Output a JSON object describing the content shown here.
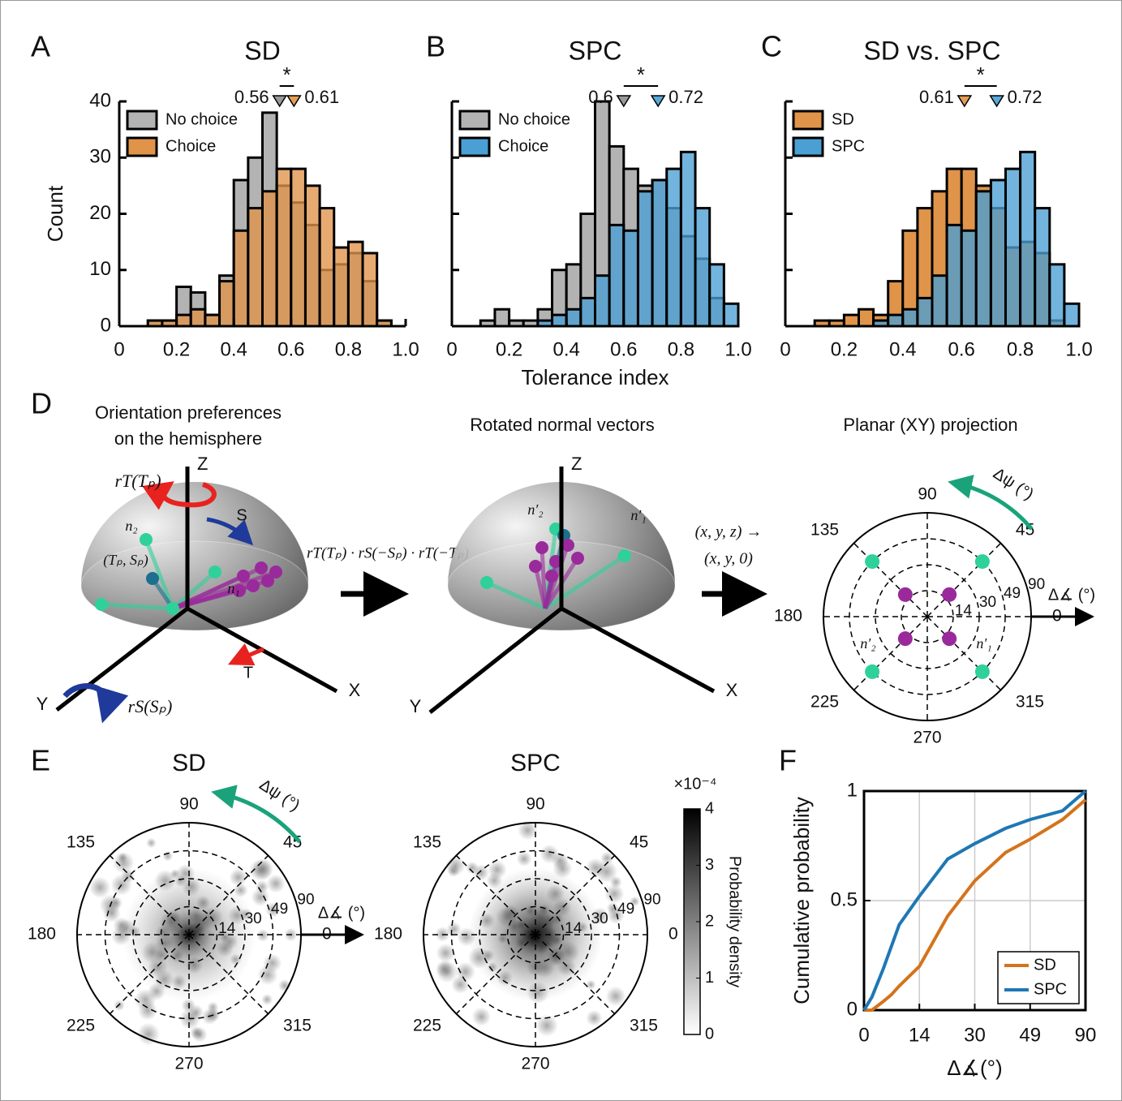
{
  "panel_labels": [
    "A",
    "B",
    "C",
    "D",
    "E",
    "F"
  ],
  "chart_data": [
    {
      "type": "histogram",
      "title": "SD",
      "ylabel": "Count",
      "bins": [
        0,
        0.05,
        0.1,
        0.15,
        0.2,
        0.25,
        0.3,
        0.35,
        0.4,
        0.45,
        0.5,
        0.55,
        0.6,
        0.65,
        0.7,
        0.75,
        0.8,
        0.85,
        0.9,
        0.95,
        1
      ],
      "series": [
        {
          "name": "No choice",
          "color": "#b3b3b3",
          "values": [
            0,
            0,
            1,
            1,
            7,
            6,
            2,
            9,
            26,
            30,
            38,
            25,
            22,
            18,
            10,
            11,
            13,
            8,
            1,
            0
          ]
        },
        {
          "name": "Choice",
          "color": "#e0944a",
          "values": [
            0,
            0,
            1,
            1,
            2,
            3,
            2,
            8,
            17,
            21,
            24,
            28,
            28,
            25,
            21,
            14,
            15,
            13,
            1,
            0
          ]
        }
      ],
      "xlim": [
        0,
        1
      ],
      "ylim": [
        0,
        40
      ],
      "xticks": [
        0,
        0.2,
        0.4,
        0.6,
        0.8,
        {
          "value": 1,
          "label": "1.0"
        }
      ],
      "yticks": [
        0,
        10,
        20,
        30,
        40
      ],
      "ytick_labels": true,
      "legend": "upper left",
      "markers": [
        {
          "value": 0.56,
          "color": "#999999",
          "label_color": "#222222"
        },
        {
          "value": 0.61,
          "color": "#e59d55",
          "label_color": "#c8701e"
        }
      ],
      "significance": "*"
    },
    {
      "type": "histogram",
      "title": "SPC",
      "xlabel": "Tolerance index",
      "bins": [
        0,
        0.05,
        0.1,
        0.15,
        0.2,
        0.25,
        0.3,
        0.35,
        0.4,
        0.45,
        0.5,
        0.55,
        0.6,
        0.65,
        0.7,
        0.75,
        0.8,
        0.85,
        0.9,
        0.95,
        1
      ],
      "series": [
        {
          "name": "No choice",
          "color": "#b3b3b3",
          "values": [
            0,
            0,
            1,
            3,
            1,
            1,
            3,
            10,
            11,
            20,
            40,
            32,
            28,
            25,
            26,
            21,
            16,
            12,
            5,
            0
          ]
        },
        {
          "name": "Choice",
          "color": "#4a9fd4",
          "values": [
            0,
            0,
            0,
            0,
            0,
            0,
            1,
            2,
            3,
            5,
            9,
            18,
            17,
            24,
            26,
            28,
            31,
            21,
            11,
            4
          ]
        }
      ],
      "xlim": [
        0,
        1
      ],
      "ylim": [
        0,
        40
      ],
      "xticks": [
        0,
        0.2,
        0.4,
        0.6,
        0.8,
        {
          "value": 1,
          "label": "1.0"
        }
      ],
      "yticks": [
        0,
        10,
        20,
        30,
        40
      ],
      "ytick_labels": false,
      "legend": "upper left",
      "markers": [
        {
          "value": 0.6,
          "color": "#999999",
          "label_color": "#222222"
        },
        {
          "value": 0.72,
          "color": "#5aa8d8",
          "label_color": "#1f7ab8"
        }
      ],
      "significance": "*"
    },
    {
      "type": "histogram",
      "title": "SD vs. SPC",
      "bins": [
        0,
        0.05,
        0.1,
        0.15,
        0.2,
        0.25,
        0.3,
        0.35,
        0.4,
        0.45,
        0.5,
        0.55,
        0.6,
        0.65,
        0.7,
        0.75,
        0.8,
        0.85,
        0.9,
        0.95,
        1
      ],
      "series": [
        {
          "name": "SD",
          "color": "#e0944a",
          "values": [
            0,
            0,
            1,
            1,
            2,
            3,
            2,
            8,
            17,
            21,
            24,
            28,
            28,
            25,
            21,
            14,
            15,
            13,
            1,
            0
          ]
        },
        {
          "name": "SPC",
          "color": "#4a9fd4",
          "values": [
            0,
            0,
            0,
            0,
            0,
            0,
            1,
            2,
            3,
            5,
            9,
            18,
            17,
            24,
            26,
            28,
            31,
            21,
            11,
            4
          ]
        }
      ],
      "xlim": [
        0,
        1
      ],
      "ylim": [
        0,
        40
      ],
      "xticks": [
        0,
        0.2,
        0.4,
        0.6,
        0.8,
        {
          "value": 1,
          "label": "1.0"
        }
      ],
      "yticks": [
        0,
        10,
        20,
        30,
        40
      ],
      "ytick_labels": false,
      "legend": "upper left",
      "markers": [
        {
          "value": 0.61,
          "color": "#e59d55",
          "label_color": "#c8701e"
        },
        {
          "value": 0.72,
          "color": "#5aa8d8",
          "label_color": "#1f7ab8"
        }
      ],
      "significance": "*"
    },
    {
      "type": "polar",
      "title": "SD",
      "theta_ticks": [
        0,
        45,
        90,
        135,
        180,
        225,
        270,
        315
      ],
      "rlim": [
        0,
        90
      ],
      "r_ticks": [
        14,
        30,
        49,
        90
      ],
      "theta_label": "Δψ (°)",
      "r_label": "Δ∡ (°)"
    },
    {
      "type": "polar",
      "title": "SPC",
      "theta_ticks": [
        0,
        45,
        90,
        135,
        180,
        225,
        270,
        315
      ],
      "rlim": [
        0,
        90
      ],
      "r_ticks": [
        14,
        30,
        49,
        90
      ],
      "colorbar": {
        "lim": [
          0,
          4
        ],
        "ticks": [
          0,
          1,
          2,
          3,
          4
        ],
        "multiplier": "×10⁻⁴",
        "label": "Probability density"
      }
    },
    {
      "type": "line",
      "xlabel": "Δ∡(°)",
      "ylabel": "Cumulative probability",
      "x": [
        0,
        2,
        4.9,
        6.9,
        8.9,
        14,
        22.2,
        30,
        40.6,
        49,
        73,
        90
      ],
      "series": [
        {
          "name": "SD",
          "color": "#d4731c",
          "values": [
            0,
            0,
            0.04,
            0.07,
            0.11,
            0.2,
            0.43,
            0.59,
            0.72,
            0.78,
            0.87,
            0.96
          ]
        },
        {
          "name": "SPC",
          "color": "#1f77b4",
          "values": [
            0,
            0.06,
            0.19,
            0.29,
            0.39,
            0.52,
            0.69,
            0.76,
            0.83,
            0.87,
            0.91,
            1
          ]
        }
      ],
      "xscale": "piecewise",
      "xlim": [
        0,
        90
      ],
      "ylim": [
        0,
        1
      ],
      "xticks": [
        0,
        14,
        30,
        49,
        90
      ],
      "yticks": [
        0,
        0.5,
        1
      ],
      "grid": true,
      "legend": "lower right"
    }
  ],
  "diagram": {
    "title_left": [
      "Orientation preferences",
      "on the hemisphere"
    ],
    "title_middle": "Rotated normal vectors",
    "title_right": "Planar (XY) projection",
    "axis_labels": {
      "z": "Z",
      "x": "X",
      "y": "Y"
    },
    "rotation_t": "rT(Tₚ)",
    "rotation_s": "rS(Sₚ)",
    "dir_s": "S",
    "dir_t": "T",
    "pole": "(Tₚ, Sₚ)",
    "n1": "n₁",
    "n2": "n₂",
    "n1_rot": "n′₁",
    "n2_rot": "n′₂",
    "formula": "rT(Tₚ) · rS(−Sₚ) · rT(−Tₚ)",
    "projection": [
      "(x, y, z) →",
      "(x, y, 0)"
    ],
    "polar": {
      "theta_ticks": [
        0,
        45,
        90,
        135,
        180,
        225,
        270,
        315
      ],
      "rlim": [
        0,
        90
      ],
      "r_ticks": [
        14,
        30,
        49,
        90
      ],
      "theta_label": "Δψ (°)",
      "r_label": "Δ∡ (°)"
    }
  }
}
